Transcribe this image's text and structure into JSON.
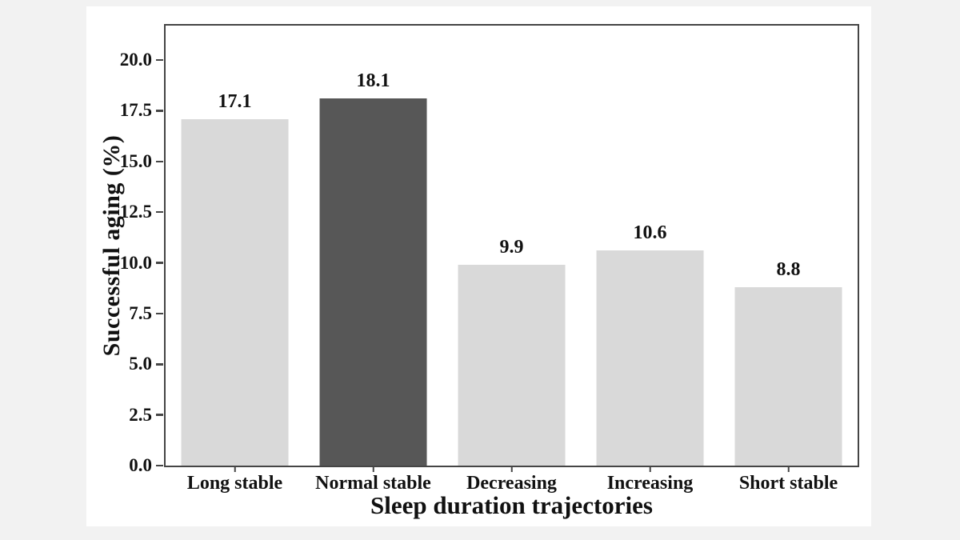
{
  "chart_data": {
    "type": "bar",
    "title": "",
    "xlabel": "Sleep duration trajectories",
    "ylabel": "Successful aging (%)",
    "categories": [
      "Long stable",
      "Normal stable",
      "Decreasing",
      "Increasing",
      "Short stable"
    ],
    "values": [
      17.1,
      18.1,
      9.9,
      10.6,
      8.8
    ],
    "value_labels": [
      "17.1",
      "18.1",
      "9.9",
      "10.6",
      "8.8"
    ],
    "bar_colors": [
      "#d9d9d9",
      "#575757",
      "#d9d9d9",
      "#d9d9d9",
      "#d9d9d9"
    ],
    "highlighted_category": "Normal stable",
    "ytick_labels": [
      "0.0",
      "2.5",
      "5.0",
      "7.5",
      "10.0",
      "12.5",
      "15.0",
      "17.5",
      "20.0"
    ],
    "yticks": [
      0,
      2.5,
      5,
      7.5,
      10,
      12.5,
      15,
      17.5,
      20
    ],
    "ylim": [
      0,
      21.7
    ],
    "grid": false,
    "legend": null,
    "colors": {
      "axis_frame": "#454545",
      "text": "#111111",
      "bar_light": "#d9d9d9",
      "bar_dark": "#575757",
      "panel_background": "#ffffff",
      "page_background": "#f2f2f2"
    }
  }
}
